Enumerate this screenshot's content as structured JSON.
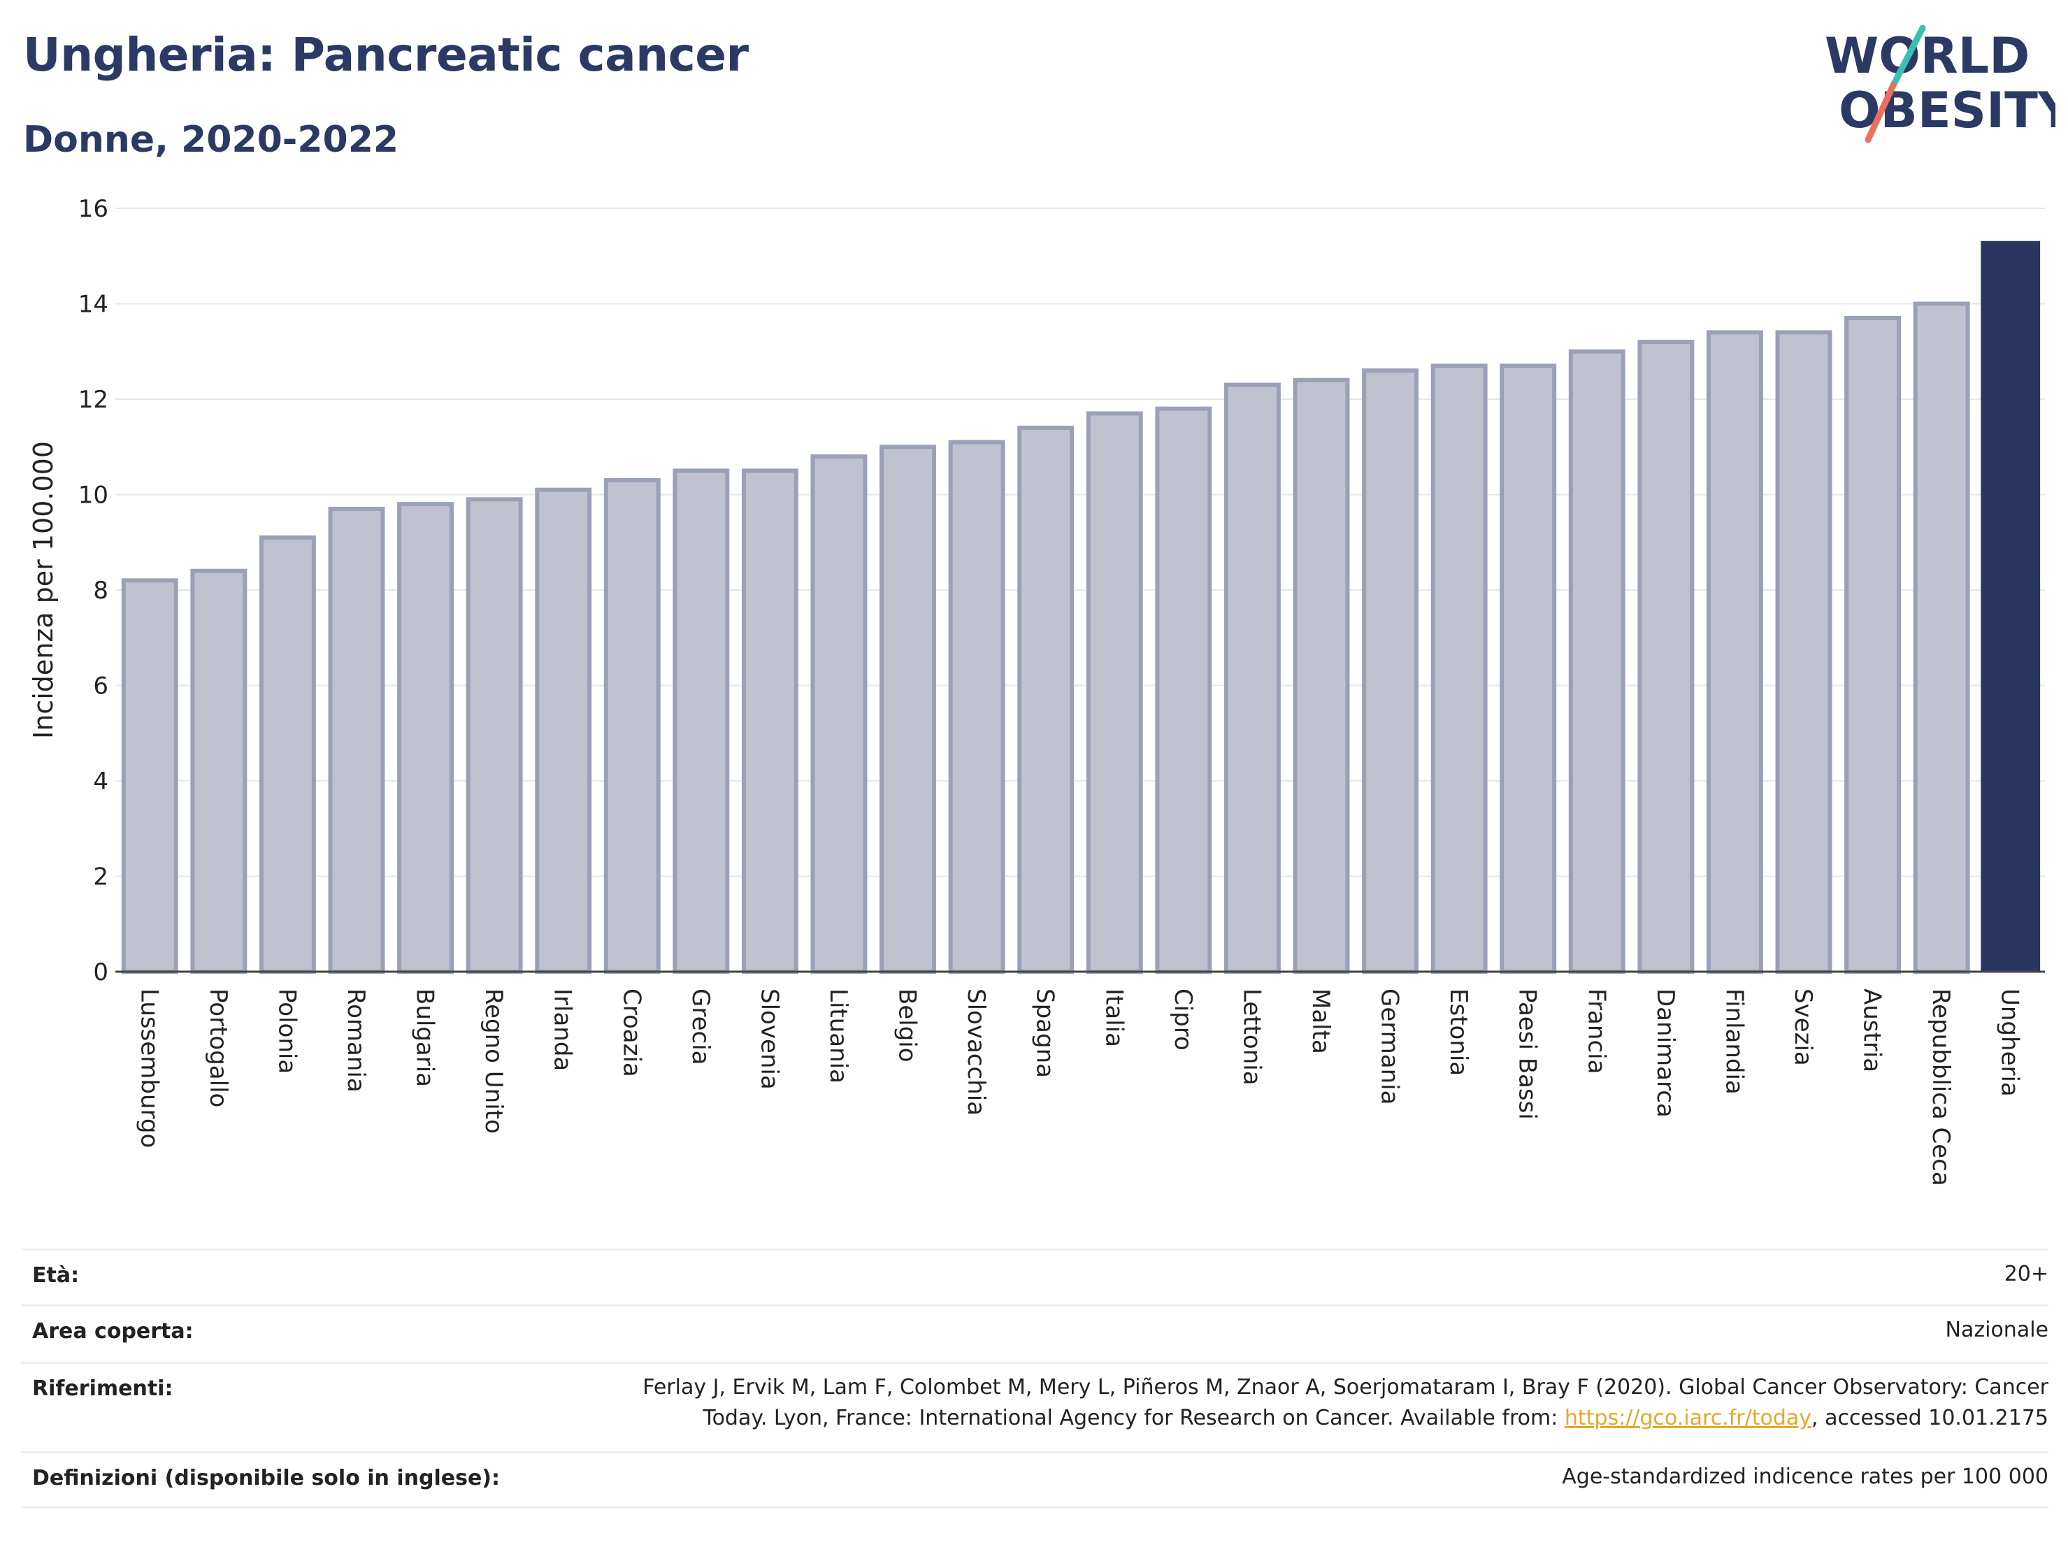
{
  "header": {
    "title": "Ungheria: Pancreatic cancer",
    "subtitle": "Donne, 2020-2022"
  },
  "logo": {
    "line1": "WORLD",
    "line2": "OBESITY",
    "colors": {
      "text": "#2b3a64",
      "slash_top": "#3bbfb1",
      "slash_bottom": "#e9705f"
    }
  },
  "chart_data": {
    "type": "bar",
    "ylabel": "Incidenza per 100.000",
    "xlabel": "",
    "ylim": [
      0,
      16
    ],
    "yticks": [
      0,
      2,
      4,
      6,
      8,
      10,
      12,
      14,
      16
    ],
    "grid": true,
    "categories": [
      "Lussemburgo",
      "Portogallo",
      "Polonia",
      "Romania",
      "Bulgaria",
      "Regno Unito",
      "Irlanda",
      "Croazia",
      "Grecia",
      "Slovenia",
      "Lituania",
      "Belgio",
      "Slovacchia",
      "Spagna",
      "Italia",
      "Cipro",
      "Lettonia",
      "Malta",
      "Germania",
      "Estonia",
      "Paesi Bassi",
      "Francia",
      "Danimarca",
      "Finlandia",
      "Svezia",
      "Austria",
      "Repubblica Ceca",
      "Ungheria"
    ],
    "values": [
      8.2,
      8.4,
      9.1,
      9.7,
      9.8,
      9.9,
      10.1,
      10.3,
      10.5,
      10.5,
      10.8,
      11.0,
      11.1,
      11.4,
      11.7,
      11.8,
      12.3,
      12.4,
      12.6,
      12.7,
      12.7,
      13.0,
      13.2,
      13.4,
      13.4,
      13.7,
      14.0,
      15.3
    ],
    "highlight": "Ungheria",
    "colors": {
      "bar": "#c0c3cf",
      "bar_edge": "#9aa0b8",
      "highlight": "#2b3660"
    }
  },
  "info": [
    {
      "key": "Età:",
      "value": "20+"
    },
    {
      "key": "Area coperta:",
      "value": "Nazionale"
    },
    {
      "key": "Riferimenti:",
      "value_lines": [
        "Ferlay J, Ervik M, Lam F, Colombet M, Mery L, Piñeros M, Znaor A, Soerjomataram I, Bray F (2020). Global Cancer Observatory: Cancer",
        "Today. Lyon, France: International Agency for Research on Cancer. Available from: "
      ],
      "link": "https://gco.iarc.fr/today",
      "suffix": ", accessed 10.01.2175"
    },
    {
      "key": "Definizioni (disponibile solo in inglese):",
      "value": "Age-standardized indicence rates per 100 000"
    }
  ]
}
